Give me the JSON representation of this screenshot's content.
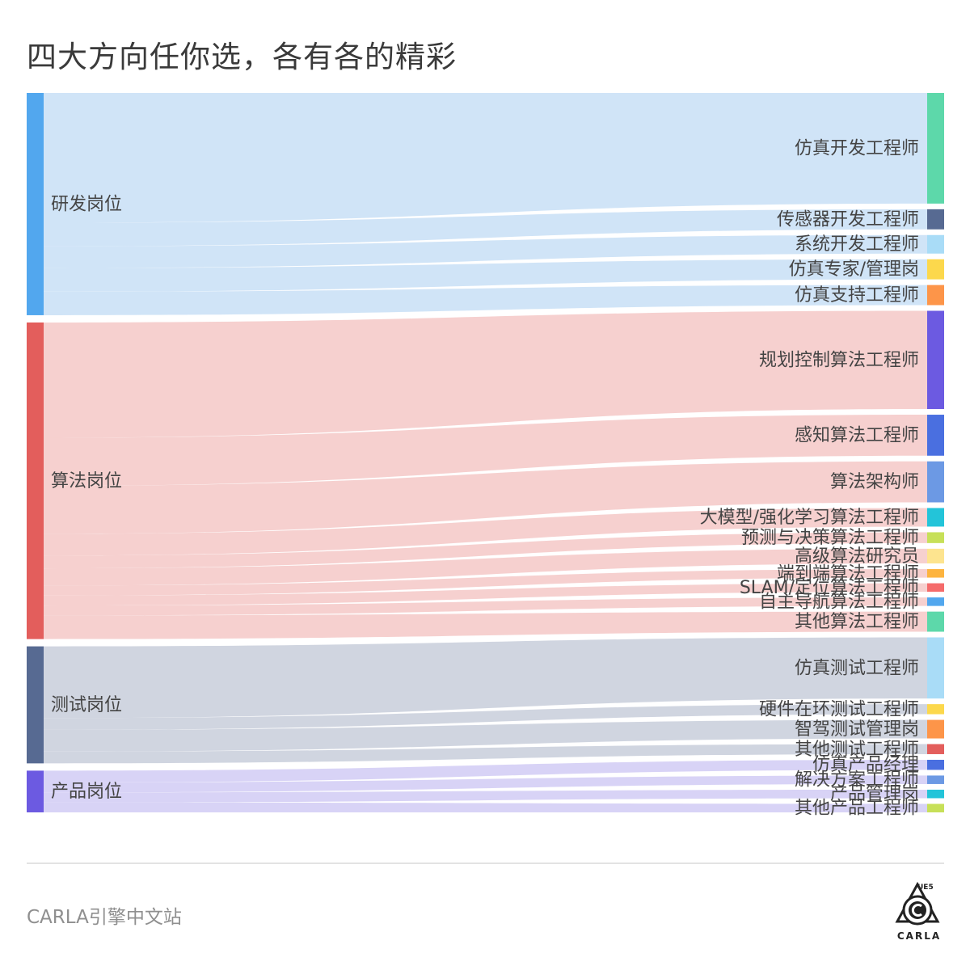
{
  "title": "四大方向任你选，各有各的精彩",
  "footer": {
    "text": "CARLA引擎中文站",
    "logo_top": "UE5",
    "logo_bottom": "CARLA"
  },
  "chart_data": {
    "type": "sankey",
    "sources": [
      {
        "name": "研发岗位",
        "color": "#52a7ee",
        "link_color": "#cde3f7"
      },
      {
        "name": "算法岗位",
        "color": "#e35e5c",
        "link_color": "#f5cdcc"
      },
      {
        "name": "测试岗位",
        "color": "#576a92",
        "link_color": "#cdd3de"
      },
      {
        "name": "产品岗位",
        "color": "#6c5ae1",
        "link_color": "#d6d1f6"
      }
    ],
    "targets": [
      {
        "name": "仿真开发工程师",
        "source": "研发岗位",
        "value": 14.3,
        "color": "#5dd8aa"
      },
      {
        "name": "传感器开发工程师",
        "source": "研发岗位",
        "value": 2.6,
        "color": "#576a92"
      },
      {
        "name": "系统开发工程师",
        "source": "研发岗位",
        "value": 2.4,
        "color": "#a9dcf7"
      },
      {
        "name": "仿真专家/管理岗",
        "source": "研发岗位",
        "value": 2.6,
        "color": "#fcd84c"
      },
      {
        "name": "仿真支持工程师",
        "source": "研发岗位",
        "value": 2.6,
        "color": "#fd9549"
      },
      {
        "name": "规划控制算法工程师",
        "source": "算法岗位",
        "value": 12.7,
        "color": "#6c5ae1"
      },
      {
        "name": "感知算法工程师",
        "source": "算法岗位",
        "value": 5.3,
        "color": "#4a6fe0"
      },
      {
        "name": "算法架构师",
        "source": "算法岗位",
        "value": 5.3,
        "color": "#6c99e4"
      },
      {
        "name": "大模型/强化学习算法工程师",
        "source": "算法岗位",
        "value": 2.4,
        "color": "#23c4d9"
      },
      {
        "name": "预测与决策算法工程师",
        "source": "算法岗位",
        "value": 1.4,
        "color": "#c7e058"
      },
      {
        "name": "高级算法研究员",
        "source": "算法岗位",
        "value": 1.9,
        "color": "#fde48f"
      },
      {
        "name": "端到端算法工程师",
        "source": "算法岗位",
        "value": 1.1,
        "color": "#fdb43f"
      },
      {
        "name": "SLAM/定位算法工程师",
        "source": "算法岗位",
        "value": 1.1,
        "color": "#f56b6b"
      },
      {
        "name": "自主导航算法工程师",
        "source": "算法岗位",
        "value": 1.1,
        "color": "#52a7ee"
      },
      {
        "name": "其他算法工程师",
        "source": "算法岗位",
        "value": 2.6,
        "color": "#5dd8aa"
      },
      {
        "name": "仿真测试工程师",
        "source": "测试岗位",
        "value": 7.9,
        "color": "#a9dcf7"
      },
      {
        "name": "硬件在环测试工程师",
        "source": "测试岗位",
        "value": 1.3,
        "color": "#fcd84c"
      },
      {
        "name": "智驾测试管理岗",
        "source": "测试岗位",
        "value": 2.4,
        "color": "#fd9549"
      },
      {
        "name": "其他测试工程师",
        "source": "测试岗位",
        "value": 1.3,
        "color": "#e35e5c"
      },
      {
        "name": "仿真产品经理",
        "source": "产品岗位",
        "value": 1.3,
        "color": "#4a6fe0"
      },
      {
        "name": "解决方案工程师",
        "source": "产品岗位",
        "value": 1.1,
        "color": "#6c99e4"
      },
      {
        "name": "产品管理岗",
        "source": "产品岗位",
        "value": 1.1,
        "color": "#23c4d9"
      },
      {
        "name": "其他产品工程师",
        "source": "产品岗位",
        "value": 1.1,
        "color": "#c7e058"
      }
    ]
  }
}
